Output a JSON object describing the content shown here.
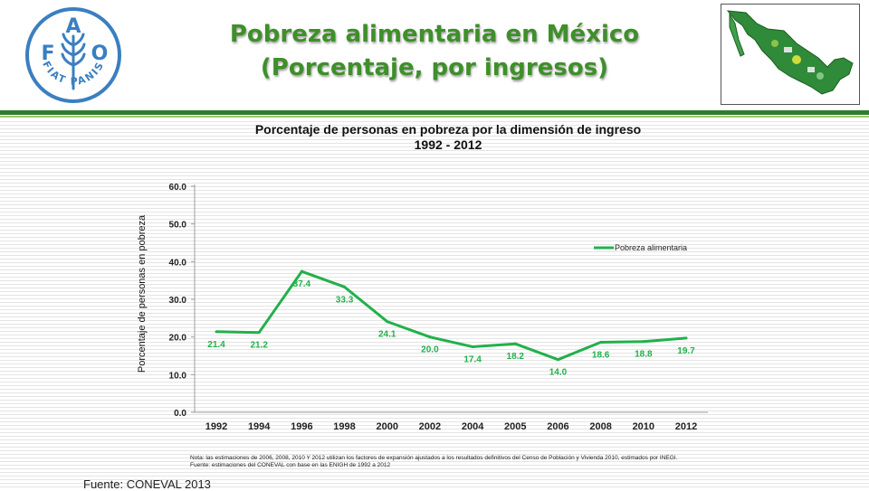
{
  "header": {
    "title_line1": "Pobreza alimentaria en México",
    "title_line2": "(Porcentaje, por ingresos)",
    "logo": {
      "letters": [
        "F",
        "A",
        "O"
      ],
      "motto": "FIAT PANIS",
      "icon": "fao-wheat-logo-icon"
    },
    "map_icon": "mexico-map-icon"
  },
  "colors": {
    "title": "#3f8f2a",
    "series": "#22b04b",
    "rule_dark": "#2e7d32",
    "rule_light": "#9ccc65",
    "logo": "#3a7fc0"
  },
  "chart_data": {
    "type": "line",
    "title": "Porcentaje de personas en pobreza por la dimensión de ingreso",
    "subtitle": "1992 - 2012",
    "ylabel": "Porcentaje de personas en pobreza",
    "xlabel": "",
    "ylim": [
      0,
      60
    ],
    "yticks": [
      "0.0",
      "10.0",
      "20.0",
      "30.0",
      "40.0",
      "50.0",
      "60.0"
    ],
    "categories": [
      "1992",
      "1994",
      "1996",
      "1998",
      "2000",
      "2002",
      "2004",
      "2005",
      "2006",
      "2008",
      "2010",
      "2012"
    ],
    "series": [
      {
        "name": "Pobreza alimentaria",
        "values": [
          21.4,
          21.2,
          37.4,
          33.3,
          24.1,
          20.0,
          17.4,
          18.2,
          14.0,
          18.6,
          18.8,
          19.7
        ],
        "labels": [
          "21.4",
          "21.2",
          "37.4",
          "33.3",
          "24.1",
          "20.0",
          "17.4",
          "18.2",
          "14.0",
          "18.6",
          "18.8",
          "19.7"
        ]
      }
    ],
    "legend_position": "right",
    "grid": false,
    "notes": [
      "Nota: las estimaciones de 2006, 2008, 2010 Y 2012 utilizan los factores de expansión ajustados a los resultados definitivos del Censo de Población y Vivienda 2010, estimados por INEGI.",
      "Fuente: estimaciones del CONEVAL con base en las ENIGH de 1992 a 2012"
    ]
  },
  "source": "Fuente: CONEVAL 2013"
}
